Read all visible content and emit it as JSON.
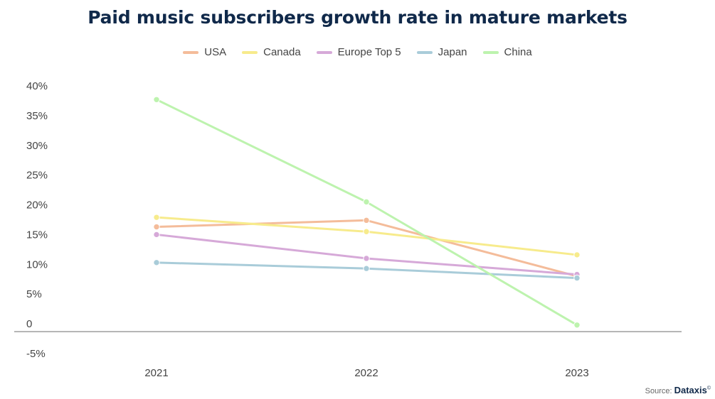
{
  "chart_data": {
    "type": "line",
    "title": "Paid music subscribers growth rate in mature markets",
    "xlabel": "",
    "ylabel": "",
    "x": [
      "2021",
      "2022",
      "2023"
    ],
    "y_ticks": [
      "40%",
      "35%",
      "30%",
      "25%",
      "20%",
      "15%",
      "10%",
      "5%",
      "0",
      "-5%"
    ],
    "y_tick_values": [
      40,
      35,
      30,
      25,
      20,
      15,
      10,
      5,
      0,
      -5
    ],
    "ylim": [
      -5,
      40
    ],
    "legend_position": "top-center",
    "grid": false,
    "series": [
      {
        "name": "USA",
        "color": "#f4bc9a",
        "values": [
          16.3,
          17.4,
          8.0
        ]
      },
      {
        "name": "Canada",
        "color": "#f7eb8c",
        "values": [
          17.9,
          15.5,
          11.6
        ]
      },
      {
        "name": "Europe Top 5",
        "color": "#d6a9d8",
        "values": [
          15.0,
          11.0,
          8.3
        ]
      },
      {
        "name": "Japan",
        "color": "#a9ccd9",
        "values": [
          10.3,
          9.3,
          7.7
        ]
      },
      {
        "name": "China",
        "color": "#bdf3ae",
        "values": [
          37.7,
          20.5,
          -0.2
        ]
      }
    ]
  },
  "source": {
    "label": "Source:",
    "brand": "Dataxis",
    "mark": "©"
  }
}
